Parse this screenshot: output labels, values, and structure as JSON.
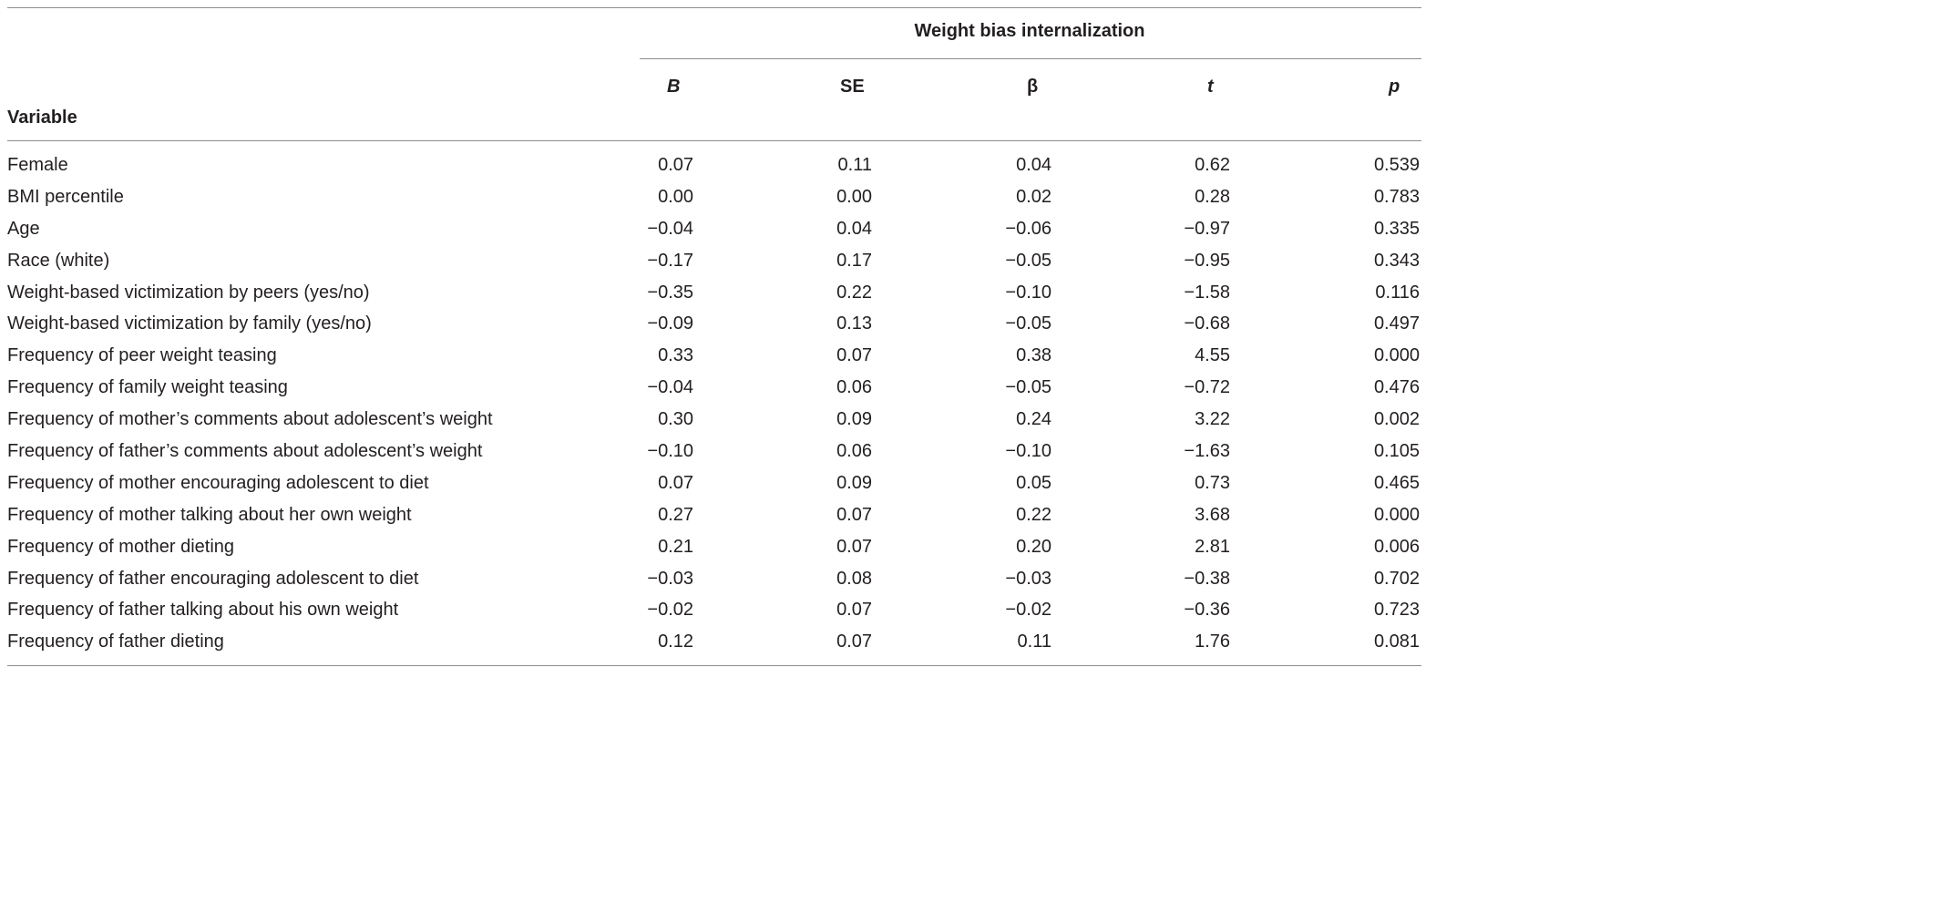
{
  "table": {
    "group_header": "Weight bias internalization",
    "variable_header": "Variable",
    "columns": {
      "b": "B",
      "se": "SE",
      "beta": "β",
      "t": "t",
      "p": "p"
    },
    "rows": [
      {
        "variable": "Female",
        "b": "0.07",
        "se": "0.11",
        "beta": "0.04",
        "t": "0.62",
        "p": "0.539"
      },
      {
        "variable": "BMI percentile",
        "b": "0.00",
        "se": "0.00",
        "beta": "0.02",
        "t": "0.28",
        "p": "0.783"
      },
      {
        "variable": "Age",
        "b": "−0.04",
        "se": "0.04",
        "beta": "−0.06",
        "t": "−0.97",
        "p": "0.335"
      },
      {
        "variable": "Race (white)",
        "b": "−0.17",
        "se": "0.17",
        "beta": "−0.05",
        "t": "−0.95",
        "p": "0.343"
      },
      {
        "variable": "Weight-based victimization by peers (yes/no)",
        "b": "−0.35",
        "se": "0.22",
        "beta": "−0.10",
        "t": "−1.58",
        "p": "0.116"
      },
      {
        "variable": "Weight-based victimization by family (yes/no)",
        "b": "−0.09",
        "se": "0.13",
        "beta": "−0.05",
        "t": "−0.68",
        "p": "0.497"
      },
      {
        "variable": "Frequency of peer weight teasing",
        "b": "0.33",
        "se": "0.07",
        "beta": "0.38",
        "t": "4.55",
        "p": "0.000"
      },
      {
        "variable": "Frequency of family weight teasing",
        "b": "−0.04",
        "se": "0.06",
        "beta": "−0.05",
        "t": "−0.72",
        "p": "0.476"
      },
      {
        "variable": "Frequency of mother’s comments about adolescent’s weight",
        "b": "0.30",
        "se": "0.09",
        "beta": "0.24",
        "t": "3.22",
        "p": "0.002"
      },
      {
        "variable": "Frequency of father’s comments about adolescent’s weight",
        "b": "−0.10",
        "se": "0.06",
        "beta": "−0.10",
        "t": "−1.63",
        "p": "0.105"
      },
      {
        "variable": "Frequency of mother encouraging adolescent to diet",
        "b": "0.07",
        "se": "0.09",
        "beta": "0.05",
        "t": "0.73",
        "p": "0.465"
      },
      {
        "variable": "Frequency of mother talking about her own weight",
        "b": "0.27",
        "se": "0.07",
        "beta": "0.22",
        "t": "3.68",
        "p": "0.000"
      },
      {
        "variable": "Frequency of mother dieting",
        "b": "0.21",
        "se": "0.07",
        "beta": "0.20",
        "t": "2.81",
        "p": "0.006"
      },
      {
        "variable": "Frequency of father encouraging adolescent to diet",
        "b": "−0.03",
        "se": "0.08",
        "beta": "−0.03",
        "t": "−0.38",
        "p": "0.702"
      },
      {
        "variable": "Frequency of father talking about his own weight",
        "b": "−0.02",
        "se": "0.07",
        "beta": "−0.02",
        "t": "−0.36",
        "p": "0.723"
      },
      {
        "variable": "Frequency of father dieting",
        "b": "0.12",
        "se": "0.07",
        "beta": "0.11",
        "t": "1.76",
        "p": "0.081"
      }
    ]
  }
}
